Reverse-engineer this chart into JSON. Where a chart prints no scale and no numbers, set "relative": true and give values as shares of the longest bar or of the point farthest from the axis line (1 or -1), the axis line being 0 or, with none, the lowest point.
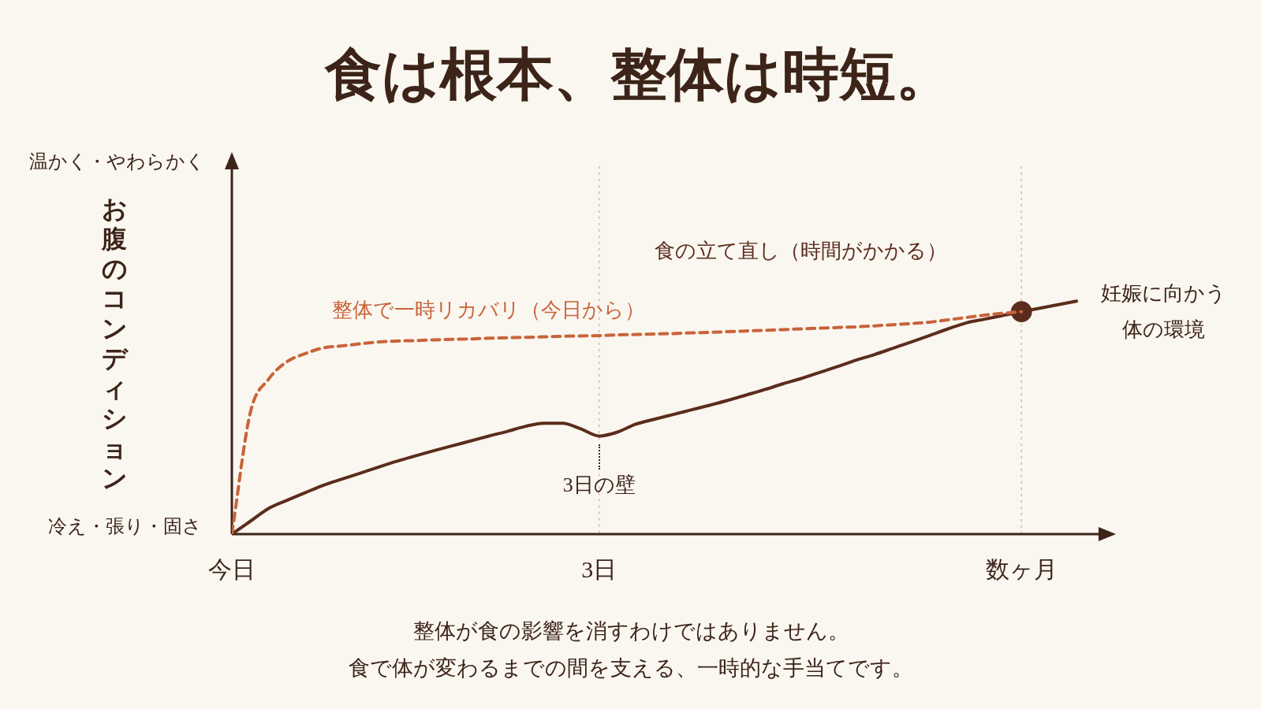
{
  "chart_data": {
    "type": "line",
    "title": "食は根本、整体は時短。",
    "ylabel": "お腹のコンディション",
    "relative": true,
    "categories": [
      "今日",
      null,
      null,
      null,
      null,
      null,
      null,
      null,
      null,
      null,
      null,
      null,
      null,
      null,
      null,
      null,
      null,
      null,
      null,
      null,
      "3日",
      null,
      null,
      null,
      null,
      null,
      null,
      null,
      null,
      null,
      null,
      null,
      null,
      null,
      null,
      null,
      null,
      null,
      null,
      null,
      null,
      null,
      null,
      "数ヶ月",
      null,
      null,
      null
    ],
    "series": [
      {
        "name": "整体で一時リカバリ（今日から）",
        "color": "#c8643a",
        "line_style": "dashed",
        "marker": "none",
        "values": [
          0,
          0.52,
          0.665,
          0.74,
          0.775,
          0.8,
          0.808,
          0.817,
          0.825,
          0.829,
          0.831,
          0.834,
          0.836,
          0.838,
          0.841,
          0.843,
          0.845,
          0.847,
          0.849,
          0.851,
          0.852,
          0.855,
          0.857,
          0.859,
          0.861,
          0.864,
          0.866,
          0.869,
          0.872,
          0.875,
          0.878,
          0.881,
          0.884,
          0.887,
          0.89,
          0.894,
          0.899,
          0.904,
          0.91,
          0.92,
          0.93,
          0.94,
          0.948,
          0.955,
          null,
          null,
          null
        ]
      },
      {
        "name": "食の立て直し（時間がかかる）",
        "color": "#5b2c1c",
        "line_style": "solid",
        "marker": "none",
        "values": [
          0,
          0.055,
          0.11,
          0.145,
          0.178,
          0.21,
          0.236,
          0.262,
          0.288,
          0.313,
          0.336,
          0.358,
          0.379,
          0.4,
          0.421,
          0.441,
          0.463,
          0.476,
          0.476,
          0.452,
          0.421,
          0.438,
          0.472,
          0.493,
          0.513,
          0.533,
          0.553,
          0.574,
          0.597,
          0.62,
          0.645,
          0.668,
          0.694,
          0.72,
          0.747,
          0.771,
          0.798,
          0.825,
          0.853,
          0.881,
          0.907,
          0.923,
          0.939,
          0.955,
          0.97,
          0.985,
          1.0
        ]
      },
      {
        "type": "scatter",
        "color": "#5b2c1c",
        "marker": "circle",
        "x": [
          "数ヶ月"
        ],
        "values": [
          0.955
        ]
      }
    ],
    "grid": "x",
    "annotations": [
      "温かく・やわらかく",
      "冷え・張り・固さ",
      {
        "text": "3日の壁",
        "x": "3日",
        "y": 0.421
      },
      "妊娠に向かう体の環境",
      "整体が食の影響を消すわけではありません。",
      "食で体が変わるまでの間を支える、一時的な手当てです。"
    ]
  }
}
